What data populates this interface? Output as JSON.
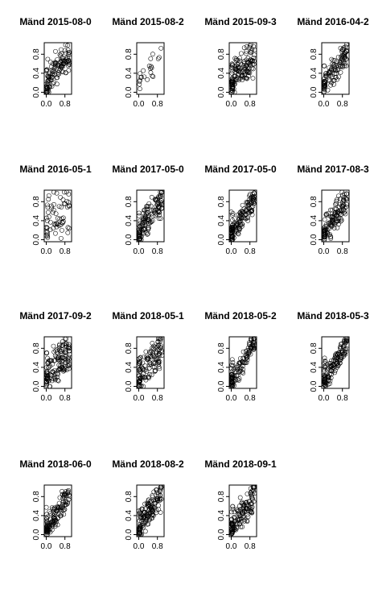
{
  "figure": {
    "layout": "4x4 grid of small scatter plots"
  },
  "chart_data": [
    {
      "type": "scatter",
      "title": "Mänd 2015-08-0",
      "xlim": [
        0,
        1
      ],
      "ylim": [
        0,
        1
      ],
      "x_ticks": [
        "0.0",
        "0.8"
      ],
      "y_ticks": [
        "0.0",
        "0.4",
        "0.8"
      ],
      "density": 110,
      "trend": 0.5,
      "near_zero": 14
    },
    {
      "type": "scatter",
      "title": "Mänd 2015-08-2",
      "xlim": [
        0,
        1
      ],
      "ylim": [
        0,
        1
      ],
      "x_ticks": [
        "0.0",
        "0.8"
      ],
      "y_ticks": [
        "0.0",
        "0.4",
        "0.8"
      ],
      "density": 18,
      "trend": 0.8,
      "near_zero": 4
    },
    {
      "type": "scatter",
      "title": "Mänd 2015-09-3",
      "xlim": [
        0,
        1
      ],
      "ylim": [
        0,
        1
      ],
      "x_ticks": [
        "0.0",
        "0.8"
      ],
      "y_ticks": [
        "0.0",
        "0.4",
        "0.8"
      ],
      "density": 120,
      "trend": 0.45,
      "near_zero": 30
    },
    {
      "type": "scatter",
      "title": "Mänd 2016-04-2",
      "xlim": [
        0,
        1
      ],
      "ylim": [
        0,
        1
      ],
      "x_ticks": [
        "0.0",
        "0.8"
      ],
      "y_ticks": [
        "0.0",
        "0.4",
        "0.8"
      ],
      "density": 95,
      "trend": 0.7,
      "near_zero": 22
    },
    {
      "type": "scatter",
      "title": "Mänd 2016-05-1",
      "xlim": [
        0,
        1
      ],
      "ylim": [
        0,
        1
      ],
      "x_ticks": [
        "0.0",
        "0.8"
      ],
      "y_ticks": [
        "0.0",
        "0.4",
        "0.8"
      ],
      "density": 55,
      "trend": 0.1,
      "near_zero": 8
    },
    {
      "type": "scatter",
      "title": "Mänd 2017-05-0",
      "xlim": [
        0,
        1
      ],
      "ylim": [
        0,
        1
      ],
      "x_ticks": [
        "0.0",
        "0.8"
      ],
      "y_ticks": [
        "0.0",
        "0.4",
        "0.8"
      ],
      "density": 120,
      "trend": 0.6,
      "near_zero": 20
    },
    {
      "type": "scatter",
      "title": "Mänd 2017-05-0",
      "xlim": [
        0,
        1
      ],
      "ylim": [
        0,
        1
      ],
      "x_ticks": [
        "0.0",
        "0.8"
      ],
      "y_ticks": [
        "0.0",
        "0.4",
        "0.8"
      ],
      "density": 120,
      "trend": 0.75,
      "near_zero": 30
    },
    {
      "type": "scatter",
      "title": "Mänd 2017-08-3",
      "xlim": [
        0,
        1
      ],
      "ylim": [
        0,
        1
      ],
      "x_ticks": [
        "0.0",
        "0.8"
      ],
      "y_ticks": [
        "0.0",
        "0.4",
        "0.8"
      ],
      "density": 115,
      "trend": 0.6,
      "near_zero": 18
    },
    {
      "type": "scatter",
      "title": "Mänd 2017-09-2",
      "xlim": [
        0,
        1
      ],
      "ylim": [
        0,
        1
      ],
      "x_ticks": [
        "0.0",
        "0.8"
      ],
      "y_ticks": [
        "0.0",
        "0.4",
        "0.8"
      ],
      "density": 125,
      "trend": 0.4,
      "near_zero": 20
    },
    {
      "type": "scatter",
      "title": "Mänd 2018-05-1",
      "xlim": [
        0,
        1
      ],
      "ylim": [
        0,
        1
      ],
      "x_ticks": [
        "0.0",
        "0.8"
      ],
      "y_ticks": [
        "0.0",
        "0.4",
        "0.8"
      ],
      "density": 110,
      "trend": 0.5,
      "near_zero": 20
    },
    {
      "type": "scatter",
      "title": "Mänd 2018-05-2",
      "xlim": [
        0,
        1
      ],
      "ylim": [
        0,
        1
      ],
      "x_ticks": [
        "0.0",
        "0.8"
      ],
      "y_ticks": [
        "0.0",
        "0.4",
        "0.8"
      ],
      "density": 100,
      "trend": 0.85,
      "near_zero": 25
    },
    {
      "type": "scatter",
      "title": "Mänd 2018-05-3",
      "xlim": [
        0,
        1
      ],
      "ylim": [
        0,
        1
      ],
      "x_ticks": [
        "0.0",
        "0.8"
      ],
      "y_ticks": [
        "0.0",
        "0.4",
        "0.8"
      ],
      "density": 110,
      "trend": 0.85,
      "near_zero": 28
    },
    {
      "type": "scatter",
      "title": "Mänd 2018-06-0",
      "xlim": [
        0,
        1
      ],
      "ylim": [
        0,
        1
      ],
      "x_ticks": [
        "0.0",
        "0.8"
      ],
      "y_ticks": [
        "0.0",
        "0.4",
        "0.8"
      ],
      "density": 115,
      "trend": 0.75,
      "near_zero": 22
    },
    {
      "type": "scatter",
      "title": "Mänd 2018-08-2",
      "xlim": [
        0,
        1
      ],
      "ylim": [
        0,
        1
      ],
      "x_ticks": [
        "0.0",
        "0.8"
      ],
      "y_ticks": [
        "0.0",
        "0.4",
        "0.8"
      ],
      "density": 125,
      "trend": 0.65,
      "near_zero": 20
    },
    {
      "type": "scatter",
      "title": "Mänd 2018-09-1",
      "xlim": [
        0,
        1
      ],
      "ylim": [
        0,
        1
      ],
      "x_ticks": [
        "0.0",
        "0.8"
      ],
      "y_ticks": [
        "0.0",
        "0.4",
        "0.8"
      ],
      "density": 115,
      "trend": 0.6,
      "near_zero": 30
    }
  ]
}
